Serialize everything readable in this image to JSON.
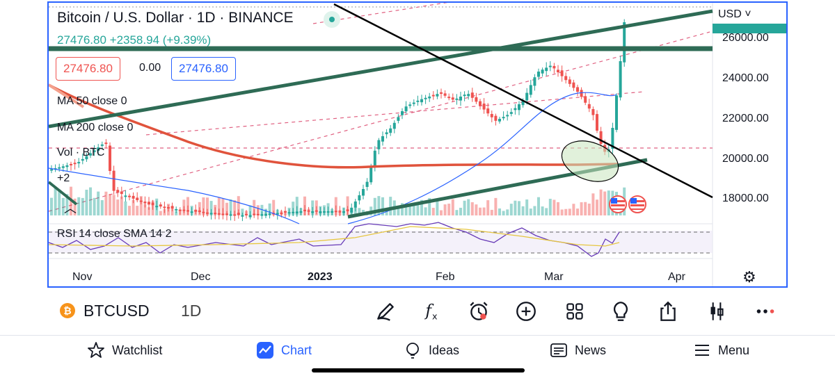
{
  "chart": {
    "title": "Bitcoin / U.S. Dollar · 1D · BINANCE",
    "last_price": "27476.80",
    "change": "+2358.94 (+9.39%)",
    "sell_price": "27476.80",
    "spread": "0.00",
    "buy_price": "27476.80",
    "indicators": [
      "MA 50 close 0",
      "MA 200 close 0",
      "Vol · BTC",
      "+2"
    ],
    "rsi_label": "RSI 14 close SMA 14 2",
    "currency": "USD",
    "price_axis": [
      "26000.00",
      "24000.00",
      "22000.00",
      "20000.00",
      "18000.00"
    ],
    "time_axis": [
      "Nov",
      "Dec",
      "2023",
      "Feb",
      "Mar",
      "Apr"
    ],
    "colors": {
      "up": "#26a69a",
      "down": "#ef5350",
      "accent": "#2962ff",
      "trendline": "#2e6b55",
      "ma200": "#e0533c",
      "ma50": "#2962ff"
    }
  },
  "symbol_bar": {
    "symbol": "BTCUSD",
    "interval": "1D",
    "tools": [
      "pencil-icon",
      "fx-icon",
      "alarm-clock-icon",
      "plus-circle-icon",
      "grid-icon",
      "lightbulb-icon",
      "share-icon",
      "candles-icon",
      "more-icon"
    ]
  },
  "nav": {
    "watchlist": "Watchlist",
    "chart": "Chart",
    "ideas": "Ideas",
    "news": "News",
    "menu": "Menu"
  }
}
